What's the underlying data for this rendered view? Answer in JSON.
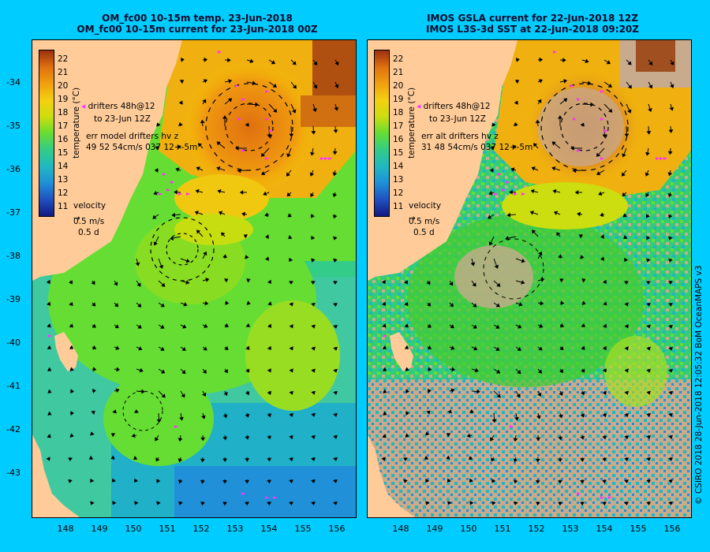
{
  "left_panel": {
    "title_line1": "OM_fc00 10-15m temp. 23-Jun-2018",
    "title_line2": "OM_fc00 10-15m current for 23-Jun-2018 00Z",
    "legend": {
      "drifters": "drifters 48h@12",
      "drifters_date": "to 23-Jun 12Z",
      "err_label": "err model drifters hv z",
      "err_values": "49 52 54cm/s 037 12+-5m"
    }
  },
  "right_panel": {
    "title_line1": "IMOS GSLA current for 22-Jun-2018 12Z",
    "title_line2": "IMOS L3S-3d SST at 22-Jun-2018 09:20Z",
    "legend": {
      "drifters": "drifters 48h@12",
      "drifters_date": "to 23-Jun 12Z",
      "err_label": "err alt drifters hv z",
      "err_values": "31 48 54cm/s 037 12+-5m"
    }
  },
  "colorbar": {
    "title": "temperature (°C)",
    "ticks": [
      "22",
      "21",
      "20",
      "19",
      "18",
      "17",
      "16",
      "15",
      "14",
      "13",
      "12",
      "11"
    ]
  },
  "velocity_legend": {
    "title": "velocity",
    "speed": "0.5 m/s",
    "duration": "0.5 d"
  },
  "axes": {
    "latitudes": [
      "-34",
      "-35",
      "-36",
      "-37",
      "-38",
      "-39",
      "-40",
      "-41",
      "-42",
      "-43"
    ],
    "longitudes": [
      "148",
      "149",
      "150",
      "151",
      "152",
      "153",
      "154",
      "155",
      "156"
    ]
  },
  "credit": "© CSIRO 2018   28-Jun-2018 12:05:32 BoM OceanMAPS v3",
  "colors": {
    "background": "#00ccff",
    "land": "#ffcc99",
    "missing_sst": "#c8aa8c",
    "drifters": "#ff33ff"
  }
}
